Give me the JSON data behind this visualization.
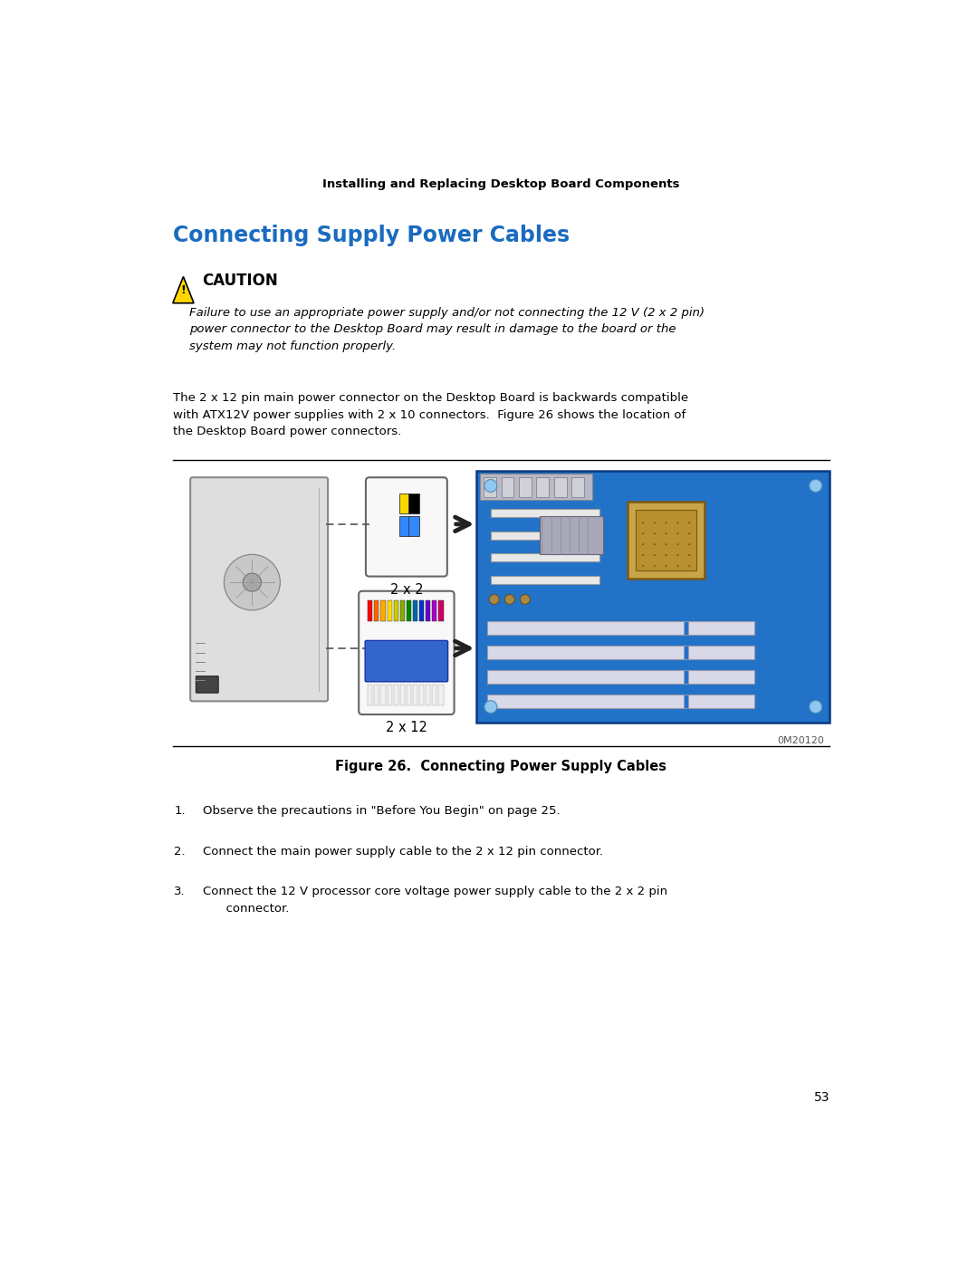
{
  "page_header": "Installing and Replacing Desktop Board Components",
  "section_title": "Connecting Supply Power Cables",
  "caution_title": "CAUTION",
  "caution_text": "Failure to use an appropriate power supply and/or not connecting the 12 V (2 x 2 pin)\npower connector to the Desktop Board may result in damage to the board or the\nsystem may not function properly.",
  "body_text": "The 2 x 12 pin main power connector on the Desktop Board is backwards compatible\nwith ATX12V power supplies with 2 x 10 connectors.  Figure 26 shows the location of\nthe Desktop Board power connectors.",
  "figure_caption": "Figure 26.  Connecting Power Supply Cables",
  "figure_id": "0M20120",
  "label_2x2": "2 x 2",
  "label_2x12": "2 x 12",
  "steps": [
    "Observe the precautions in \"Before You Begin\" on page 25.",
    "Connect the main power supply cable to the 2 x 12 pin connector.",
    "Connect the 12 V processor core voltage power supply cable to the 2 x 2 pin\n      connector."
  ],
  "page_number": "53",
  "bg_color": "#ffffff",
  "header_color": "#000000",
  "text_color": "#000000",
  "section_color": "#1A6BBF"
}
